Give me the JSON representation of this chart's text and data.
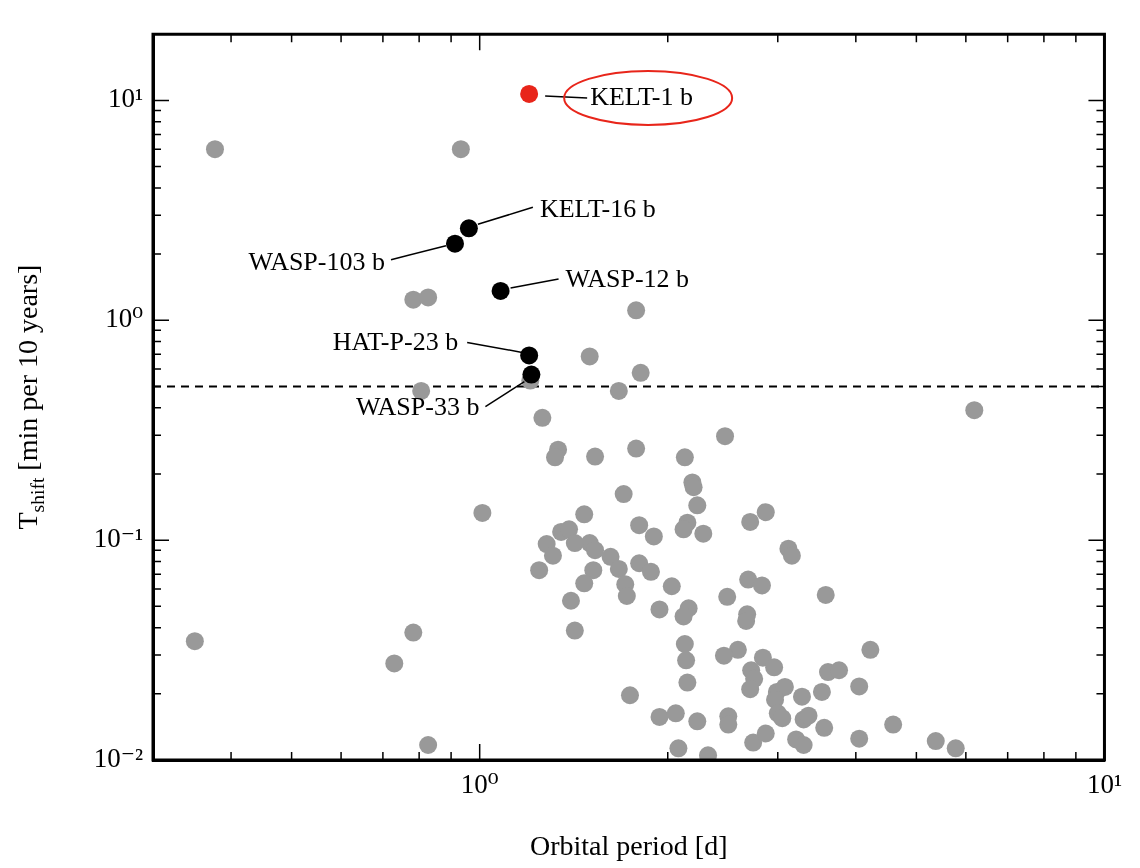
{
  "chart_data": {
    "type": "scatter",
    "xlabel": "Orbital period [d]",
    "ylabel": "T$_{shift}$ [min per 10 years]",
    "log": "xy",
    "grid": false,
    "legend": false,
    "marker": "circle",
    "xlim": [
      0.3,
      10
    ],
    "ylim": [
      0.01,
      20
    ],
    "xticks": [
      {
        "value": 0.3,
        "label": null
      },
      {
        "value": 0.4,
        "label": null
      },
      {
        "value": 0.5,
        "label": null
      },
      {
        "value": 0.6,
        "label": null
      },
      {
        "value": 0.7,
        "label": null
      },
      {
        "value": 0.8,
        "label": null
      },
      {
        "value": 0.9,
        "label": null
      },
      {
        "value": 1,
        "label": "10⁰"
      },
      {
        "value": 2,
        "label": null
      },
      {
        "value": 3,
        "label": null
      },
      {
        "value": 4,
        "label": null
      },
      {
        "value": 5,
        "label": null
      },
      {
        "value": 6,
        "label": null
      },
      {
        "value": 7,
        "label": null
      },
      {
        "value": 8,
        "label": null
      },
      {
        "value": 9,
        "label": null
      },
      {
        "value": 10,
        "label": "10¹"
      }
    ],
    "yticks": [
      {
        "value": 0.01,
        "label": "10⁻²"
      },
      {
        "value": 0.02,
        "label": null
      },
      {
        "value": 0.03,
        "label": null
      },
      {
        "value": 0.04,
        "label": null
      },
      {
        "value": 0.05,
        "label": null
      },
      {
        "value": 0.06,
        "label": null
      },
      {
        "value": 0.07,
        "label": null
      },
      {
        "value": 0.08,
        "label": null
      },
      {
        "value": 0.09,
        "label": null
      },
      {
        "value": 0.1,
        "label": "10⁻¹"
      },
      {
        "value": 0.2,
        "label": null
      },
      {
        "value": 0.3,
        "label": null
      },
      {
        "value": 0.4,
        "label": null
      },
      {
        "value": 0.5,
        "label": null
      },
      {
        "value": 0.6,
        "label": null
      },
      {
        "value": 0.7,
        "label": null
      },
      {
        "value": 0.8,
        "label": null
      },
      {
        "value": 0.9,
        "label": null
      },
      {
        "value": 1,
        "label": "10⁰"
      },
      {
        "value": 2,
        "label": null
      },
      {
        "value": 3,
        "label": null
      },
      {
        "value": 4,
        "label": null
      },
      {
        "value": 5,
        "label": null
      },
      {
        "value": 6,
        "label": null
      },
      {
        "value": 7,
        "label": null
      },
      {
        "value": 8,
        "label": null
      },
      {
        "value": 9,
        "label": null
      },
      {
        "value": 10,
        "label": "10¹"
      },
      {
        "value": 20,
        "label": null
      }
    ],
    "ref_lines": [
      {
        "axis": "y",
        "value": 0.5,
        "line_style": "dashed",
        "color": "#000000"
      }
    ],
    "series": [
      {
        "color": "#999999",
        "x": [
          0.377,
          0.933,
          0.783,
          0.827,
          0.806,
          1.78,
          1.5,
          1.81,
          1.205,
          1.67,
          6.19,
          1.26,
          1.335,
          1.32,
          1.53,
          1.78,
          2.47,
          2.13,
          2.19,
          2.2,
          1.01,
          1.7,
          2.23,
          2.87,
          2.71,
          2.15,
          2.12,
          1.8,
          1.9,
          2.28,
          1.47,
          1.35,
          1.39,
          1.28,
          1.31,
          1.5,
          1.53,
          1.62,
          1.42,
          1.245,
          1.52,
          1.67,
          1.71,
          1.8,
          1.88,
          1.47,
          2.03,
          1.72,
          1.4,
          1.94,
          2.16,
          2.12,
          2.49,
          2.69,
          2.83,
          3.12,
          3.16,
          3.58,
          2.68,
          2.67,
          1.42,
          2.13,
          2.14,
          2.15,
          2.59,
          2.46,
          2.84,
          2.96,
          2.72,
          2.75,
          2.71,
          2.99,
          3.08,
          2.97,
          3.28,
          3.61,
          3.76,
          4.22,
          3.53,
          4.05,
          1.74,
          1.94,
          2.06,
          2.23,
          2.5,
          2.5,
          2.74,
          2.87,
          3.0,
          3.05,
          3.3,
          3.21,
          3.3,
          3.56,
          3.36,
          4.05,
          4.59,
          5.37,
          5.78,
          2.08,
          2.32,
          0.827,
          0.35,
          0.73,
          0.783
        ],
        "values": [
          6.0,
          6.0,
          1.24,
          1.27,
          0.477,
          1.11,
          0.685,
          0.577,
          0.532,
          0.477,
          0.39,
          0.36,
          0.258,
          0.238,
          0.24,
          0.261,
          0.297,
          0.238,
          0.183,
          0.174,
          0.133,
          0.162,
          0.144,
          0.134,
          0.121,
          0.12,
          0.112,
          0.117,
          0.104,
          0.107,
          0.131,
          0.109,
          0.112,
          0.096,
          0.085,
          0.097,
          0.09,
          0.084,
          0.097,
          0.073,
          0.073,
          0.074,
          0.063,
          0.0785,
          0.0718,
          0.0636,
          0.0617,
          0.0557,
          0.053,
          0.0484,
          0.049,
          0.045,
          0.0552,
          0.0662,
          0.0622,
          0.0914,
          0.085,
          0.0563,
          0.046,
          0.0429,
          0.0388,
          0.0337,
          0.0284,
          0.0225,
          0.0317,
          0.0298,
          0.0292,
          0.0264,
          0.0256,
          0.0234,
          0.021,
          0.0204,
          0.0215,
          0.0188,
          0.0194,
          0.0251,
          0.0256,
          0.0317,
          0.0204,
          0.0216,
          0.0197,
          0.0157,
          0.0163,
          0.015,
          0.0158,
          0.0145,
          0.012,
          0.0132,
          0.0163,
          0.0155,
          0.0153,
          0.0124,
          0.0117,
          0.014,
          0.0159,
          0.0125,
          0.0145,
          0.0122,
          0.0113,
          0.0113,
          0.0105,
          0.0117,
          0.0347,
          0.0275,
          0.038
        ]
      },
      {
        "color": "#000000",
        "x": [
          0.961,
          0.913,
          1.08,
          1.2,
          1.21
        ],
        "values": [
          2.62,
          2.23,
          1.36,
          0.692,
          0.566
        ]
      },
      {
        "color": "#e8251a",
        "x": [
          1.2
        ],
        "values": [
          10.7
        ]
      }
    ],
    "annotations": [
      {
        "text": "KELT-1 b",
        "x": 1.2,
        "y": 10.7
      },
      {
        "text": "KELT-16 b",
        "x": 0.961,
        "y": 2.62
      },
      {
        "text": "WASP-103 b",
        "x": 0.913,
        "y": 2.23
      },
      {
        "text": "WASP-12 b",
        "x": 1.08,
        "y": 1.36
      },
      {
        "text": "HAT-P-23 b",
        "x": 1.2,
        "y": 0.692
      },
      {
        "text": "WASP-33 b",
        "x": 1.21,
        "y": 0.566
      }
    ]
  }
}
